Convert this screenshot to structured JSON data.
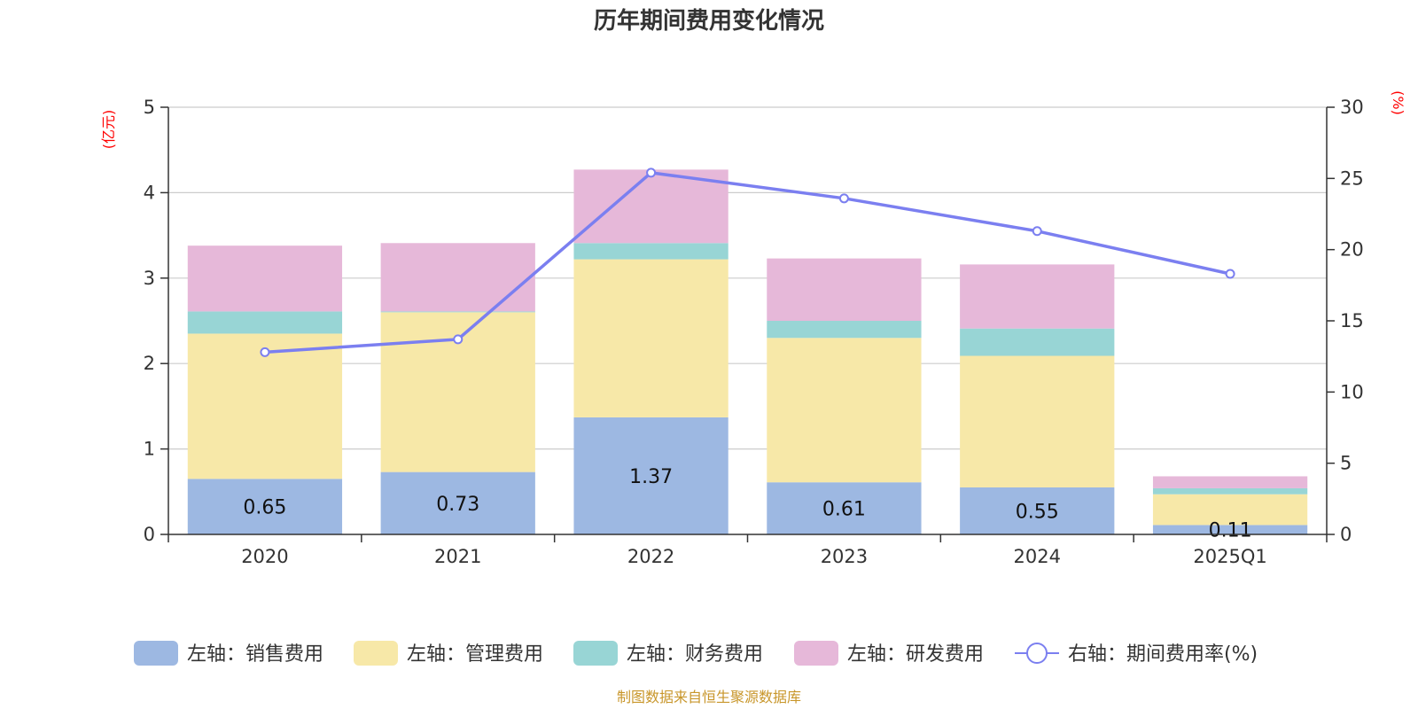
{
  "chart_data": {
    "type": "bar",
    "stacked": true,
    "title": "历年期间费用变化情况",
    "categories": [
      "2020",
      "2021",
      "2022",
      "2023",
      "2024",
      "2025Q1"
    ],
    "left_axis": {
      "unit": "(亿元)",
      "ylim": [
        0,
        5
      ],
      "ticks": [
        "0",
        "1",
        "2",
        "3",
        "4",
        "5"
      ]
    },
    "right_axis": {
      "unit": "(%)",
      "ylim": [
        0,
        30
      ],
      "ticks": [
        "0",
        "5",
        "10",
        "15",
        "20",
        "25",
        "30"
      ]
    },
    "series": [
      {
        "name": "左轴：销售费用",
        "axis": "left",
        "color": "#9db8e2",
        "values": [
          0.65,
          0.73,
          1.37,
          0.61,
          0.55,
          0.11
        ],
        "labels": [
          "0.65",
          "0.73",
          "1.37",
          "0.61",
          "0.55",
          "0.11"
        ]
      },
      {
        "name": "左轴：管理费用",
        "axis": "left",
        "color": "#f7e8a8",
        "values": [
          1.7,
          1.87,
          1.85,
          1.69,
          1.54,
          0.36
        ]
      },
      {
        "name": "左轴：财务费用",
        "axis": "left",
        "color": "#98d5d5",
        "values": [
          0.26,
          0.01,
          0.19,
          0.2,
          0.32,
          0.07
        ]
      },
      {
        "name": "左轴：研发费用",
        "axis": "left",
        "color": "#e6b8d9",
        "values": [
          0.77,
          0.8,
          0.86,
          0.73,
          0.75,
          0.14
        ]
      }
    ],
    "line": {
      "name": "右轴：期间费用率(%)",
      "axis": "right",
      "color": "#7b7ff0",
      "values": [
        12.8,
        13.7,
        25.4,
        23.6,
        21.3,
        18.3
      ]
    },
    "grid": true
  },
  "source": "制图数据来自恒生聚源数据库"
}
